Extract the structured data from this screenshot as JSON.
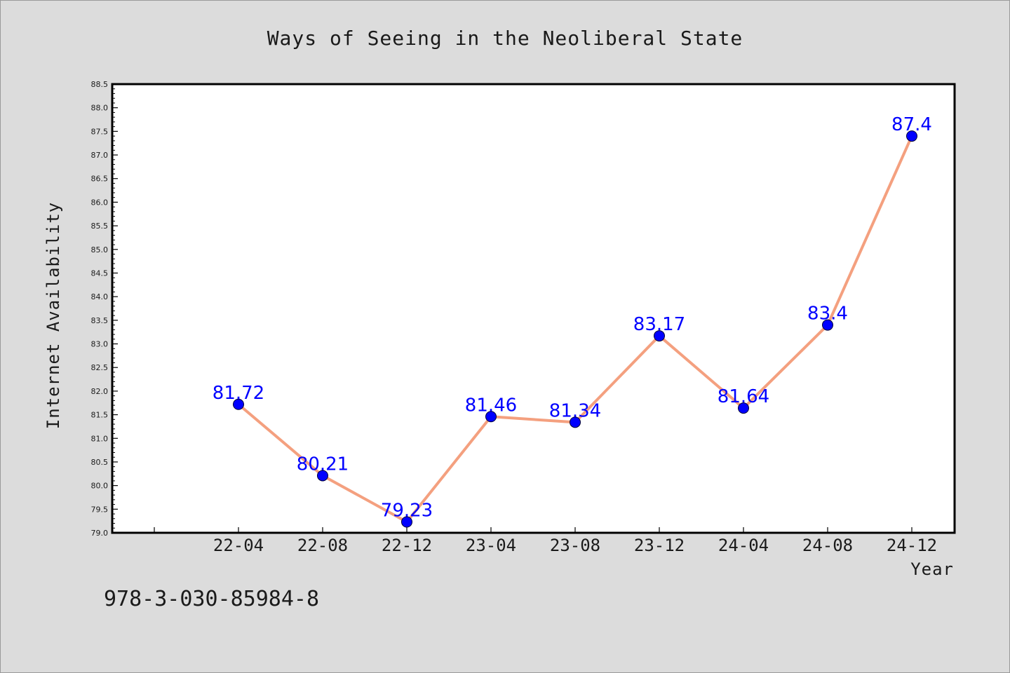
{
  "chart_data": {
    "type": "line",
    "title": "Ways of Seeing in the Neoliberal State",
    "xlabel": "Year",
    "ylabel": "Internet Availability",
    "categories": [
      "22-04",
      "22-08",
      "22-12",
      "23-04",
      "23-08",
      "23-12",
      "24-04",
      "24-08",
      "24-12"
    ],
    "series": [
      {
        "values": [
          81.72,
          80.21,
          79.23,
          81.46,
          81.34,
          83.17,
          81.64,
          83.4,
          87.4
        ]
      }
    ],
    "data_labels": [
      "81.72",
      "80.21",
      "79.23",
      "81.46",
      "81.34",
      "83.17",
      "81.64",
      "83.4",
      "87.4"
    ],
    "ylim": [
      79.0,
      88.5
    ],
    "y_major_step": 0.5,
    "y_tick_labels": [
      "79.0",
      "79.5",
      "80.0",
      "80.5",
      "81.0",
      "81.5",
      "82.0",
      "82.5",
      "83.0",
      "83.5",
      "84.0",
      "84.5",
      "85.0",
      "85.5",
      "86.0",
      "86.5",
      "87.0",
      "87.5",
      "88.0",
      "88.5"
    ],
    "grid": false,
    "line_color": "#f4a07f",
    "marker_color": "#0000ff",
    "label_color": "#0000ff",
    "background_color": "#dcdcdc",
    "plot_background": "#ffffff"
  },
  "footer_text": "978-3-030-85984-8"
}
